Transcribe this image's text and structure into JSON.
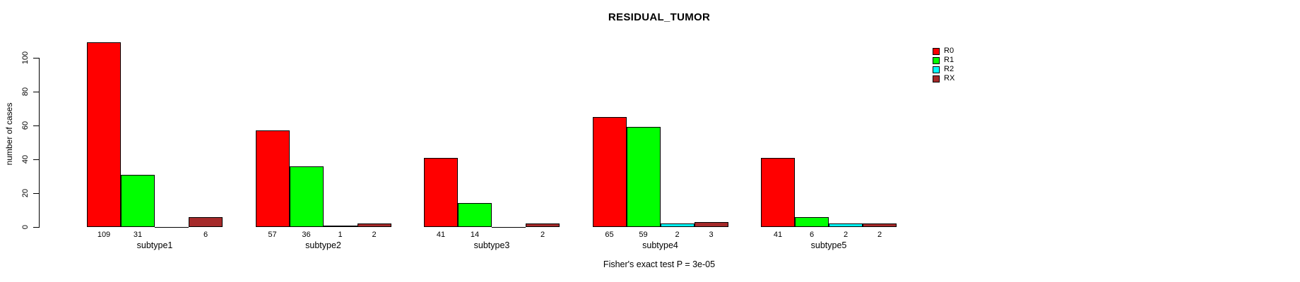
{
  "chart_data": {
    "type": "bar",
    "title": "RESIDUAL_TUMOR",
    "ylabel": "number of cases",
    "xlabel": "",
    "annotation": "Fisher's exact test P = 3e-05",
    "categories": [
      "subtype1",
      "subtype2",
      "subtype3",
      "subtype4",
      "subtype5"
    ],
    "series": [
      {
        "name": "R0",
        "color": "#FF0000",
        "values": [
          109,
          57,
          41,
          65,
          41
        ]
      },
      {
        "name": "R1",
        "color": "#00FF00",
        "values": [
          31,
          36,
          14,
          59,
          6
        ]
      },
      {
        "name": "R2",
        "color": "#00FFFF",
        "values": [
          0,
          1,
          0,
          2,
          2
        ]
      },
      {
        "name": "RX",
        "color": "#A52A2A",
        "values": [
          6,
          2,
          2,
          3,
          2
        ]
      }
    ],
    "ylim": [
      0,
      100
    ],
    "yticks": [
      0,
      20,
      40,
      60,
      80,
      100
    ],
    "bar_value_labels": "shown below bars, zero counts omitted",
    "legend_position": "right",
    "grid": false,
    "background": "#FFFFFF",
    "text_color": "#000000"
  }
}
